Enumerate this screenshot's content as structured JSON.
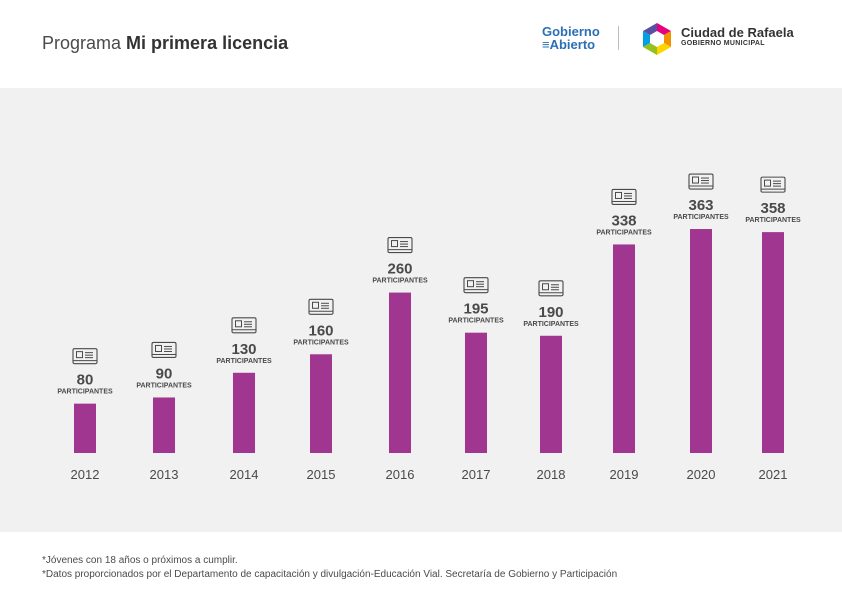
{
  "header": {
    "title_prefix": "Programa ",
    "title_bold": "Mi primera licencia",
    "gobierno_abierto_line1": "Gobierno",
    "gobierno_abierto_line2": "Abierto",
    "city_name": "Ciudad de Rafaela",
    "city_sub": "GOBIERNO MUNICIPAL"
  },
  "chart_data": {
    "type": "bar",
    "categories": [
      "2012",
      "2013",
      "2014",
      "2015",
      "2016",
      "2017",
      "2018",
      "2019",
      "2020",
      "2021"
    ],
    "values": [
      80,
      90,
      130,
      160,
      260,
      195,
      190,
      338,
      363,
      358
    ],
    "value_unit_label": "PARTICIPANTES",
    "bar_color": "#a0368f",
    "label_color": "#4a4a4a",
    "icon": "license-card-icon",
    "grid": false,
    "ylim": [
      0,
      363
    ]
  },
  "footnotes": [
    "*Jóvenes con 18 años o próximos a cumplir.",
    "*Datos proporcionados por el Departamento de capacitación y divulgación-Educación Vial. Secretaría de Gobierno y Participación"
  ]
}
